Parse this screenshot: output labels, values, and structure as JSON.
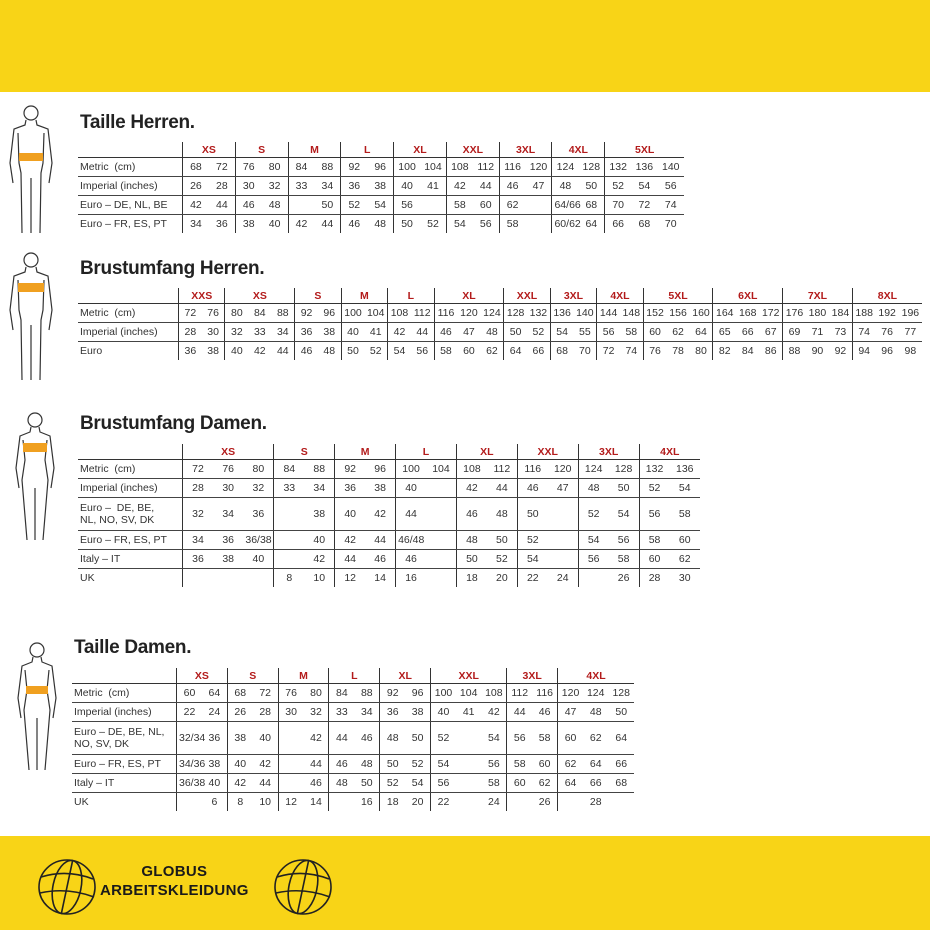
{
  "brand": {
    "line1": "GLOBUS",
    "line2": "ARBEITSKLEIDUNG"
  },
  "colors": {
    "band": "#f8d417",
    "size_header": "#b31b1b",
    "waist_highlight": "#f0a020"
  },
  "tables": [
    {
      "title": "Taille Herren.",
      "figure": "male-waist-figure-icon",
      "sizes": [
        {
          "label": "XS",
          "span": 2
        },
        {
          "label": "S",
          "span": 2
        },
        {
          "label": "M",
          "span": 2
        },
        {
          "label": "L",
          "span": 2
        },
        {
          "label": "XL",
          "span": 2
        },
        {
          "label": "XXL",
          "span": 2
        },
        {
          "label": "3XL",
          "span": 2
        },
        {
          "label": "4XL",
          "span": 2
        },
        {
          "label": "5XL",
          "span": 3
        }
      ],
      "rows": [
        {
          "label": "Metric  (cm)",
          "cells": [
            "68",
            "72",
            "76",
            "80",
            "84",
            "88",
            "92",
            "96",
            "100",
            "104",
            "108",
            "112",
            "116",
            "120",
            "124",
            "128",
            "132",
            "136",
            "140"
          ]
        },
        {
          "label": "Imperial (inches)",
          "cells": [
            "26",
            "28",
            "30",
            "32",
            "33",
            "34",
            "36",
            "38",
            "40",
            "41",
            "42",
            "44",
            "46",
            "47",
            "48",
            "50",
            "52",
            "54",
            "56"
          ]
        },
        {
          "label": "Euro – DE, NL, BE",
          "cells": [
            "42",
            "44",
            "46",
            "48",
            "",
            "50",
            "52",
            "54",
            "56",
            "",
            "58",
            "60",
            "62",
            "",
            "64/66",
            "68",
            "70",
            "72",
            "74"
          ]
        },
        {
          "label": "Euro – FR, ES, PT",
          "cells": [
            "34",
            "36",
            "38",
            "40",
            "42",
            "44",
            "46",
            "48",
            "50",
            "52",
            "54",
            "56",
            "58",
            "",
            "60/62",
            "64",
            "66",
            "68",
            "70"
          ]
        }
      ]
    },
    {
      "title": "Brustumfang Herren.",
      "figure": "male-chest-figure-icon",
      "sizes": [
        {
          "label": "XXS",
          "span": 2
        },
        {
          "label": "XS",
          "span": 3
        },
        {
          "label": "S",
          "span": 2
        },
        {
          "label": "M",
          "span": 2
        },
        {
          "label": "L",
          "span": 2
        },
        {
          "label": "XL",
          "span": 3
        },
        {
          "label": "XXL",
          "span": 2
        },
        {
          "label": "3XL",
          "span": 2
        },
        {
          "label": "4XL",
          "span": 2
        },
        {
          "label": "5XL",
          "span": 3
        },
        {
          "label": "6XL",
          "span": 3
        },
        {
          "label": "7XL",
          "span": 3
        },
        {
          "label": "8XL",
          "span": 3
        }
      ],
      "rows": [
        {
          "label": "Metric  (cm)",
          "cells": [
            "72",
            "76",
            "80",
            "84",
            "88",
            "92",
            "96",
            "100",
            "104",
            "108",
            "112",
            "116",
            "120",
            "124",
            "128",
            "132",
            "136",
            "140",
            "144",
            "148",
            "152",
            "156",
            "160",
            "164",
            "168",
            "172",
            "176",
            "180",
            "184",
            "188",
            "192",
            "196"
          ]
        },
        {
          "label": "Imperial (inches)",
          "cells": [
            "28",
            "30",
            "32",
            "33",
            "34",
            "36",
            "38",
            "40",
            "41",
            "42",
            "44",
            "46",
            "47",
            "48",
            "50",
            "52",
            "54",
            "55",
            "56",
            "58",
            "60",
            "62",
            "64",
            "65",
            "66",
            "67",
            "69",
            "71",
            "73",
            "74",
            "76",
            "77"
          ]
        },
        {
          "label": "Euro",
          "cells": [
            "36",
            "38",
            "40",
            "42",
            "44",
            "46",
            "48",
            "50",
            "52",
            "54",
            "56",
            "58",
            "60",
            "62",
            "64",
            "66",
            "68",
            "70",
            "72",
            "74",
            "76",
            "78",
            "80",
            "82",
            "84",
            "86",
            "88",
            "90",
            "92",
            "94",
            "96",
            "98"
          ]
        }
      ]
    },
    {
      "title": "Brustumfang Damen.",
      "figure": "female-chest-figure-icon",
      "sizes": [
        {
          "label": "XS",
          "span": 3
        },
        {
          "label": "S",
          "span": 2
        },
        {
          "label": "M",
          "span": 2
        },
        {
          "label": "L",
          "span": 2
        },
        {
          "label": "XL",
          "span": 2
        },
        {
          "label": "XXL",
          "span": 2
        },
        {
          "label": "3XL",
          "span": 2
        },
        {
          "label": "4XL",
          "span": 2
        }
      ],
      "rows": [
        {
          "label": "Metric  (cm)",
          "cells": [
            "72",
            "76",
            "80",
            "84",
            "88",
            "92",
            "96",
            "100",
            "104",
            "108",
            "112",
            "116",
            "120",
            "124",
            "128",
            "132",
            "136"
          ]
        },
        {
          "label": "Imperial (inches)",
          "cells": [
            "28",
            "30",
            "32",
            "33",
            "34",
            "36",
            "38",
            "40",
            "",
            "42",
            "44",
            "46",
            "47",
            "48",
            "50",
            "52",
            "54"
          ]
        },
        {
          "label": "Euro –  DE, BE,\nNL, NO, SV, DK",
          "tall": true,
          "cells": [
            "32",
            "34",
            "36",
            "",
            "38",
            "40",
            "42",
            "44",
            "",
            "46",
            "48",
            "50",
            "",
            "52",
            "54",
            "56",
            "58"
          ]
        },
        {
          "label": "Euro – FR, ES, PT",
          "cells": [
            "34",
            "36",
            "36/38",
            "",
            "40",
            "42",
            "44",
            "46/48",
            "",
            "48",
            "50",
            "52",
            "",
            "54",
            "56",
            "58",
            "60"
          ]
        },
        {
          "label": "Italy – IT",
          "cells": [
            "36",
            "38",
            "40",
            "",
            "42",
            "44",
            "46",
            "46",
            "",
            "50",
            "52",
            "54",
            "",
            "56",
            "58",
            "60",
            "62"
          ]
        },
        {
          "label": "UK",
          "cells": [
            "",
            "",
            "",
            "8",
            "10",
            "12",
            "14",
            "16",
            "",
            "18",
            "20",
            "22",
            "24",
            "",
            "26",
            "28",
            "30"
          ]
        }
      ]
    },
    {
      "title": "Taille  Damen.",
      "figure": "female-waist-figure-icon",
      "sizes": [
        {
          "label": "XS",
          "span": 2
        },
        {
          "label": "S",
          "span": 2
        },
        {
          "label": "M",
          "span": 2
        },
        {
          "label": "L",
          "span": 2
        },
        {
          "label": "XL",
          "span": 2
        },
        {
          "label": "XXL",
          "span": 3
        },
        {
          "label": "3XL",
          "span": 2
        },
        {
          "label": "4XL",
          "span": 3
        }
      ],
      "rows": [
        {
          "label": "Metric  (cm)",
          "cells": [
            "60",
            "64",
            "68",
            "72",
            "76",
            "80",
            "84",
            "88",
            "92",
            "96",
            "100",
            "104",
            "108",
            "112",
            "116",
            "120",
            "124",
            "128"
          ]
        },
        {
          "label": "Imperial (inches)",
          "cells": [
            "22",
            "24",
            "26",
            "28",
            "30",
            "32",
            "33",
            "34",
            "36",
            "38",
            "40",
            "41",
            "42",
            "44",
            "46",
            "47",
            "48",
            "50"
          ]
        },
        {
          "label": "Euro – DE, BE, NL,\nNO, SV, DK",
          "tall": true,
          "cells": [
            "32/34",
            "36",
            "38",
            "40",
            "",
            "42",
            "44",
            "46",
            "48",
            "50",
            "52",
            "",
            "54",
            "56",
            "58",
            "60",
            "62",
            "64"
          ]
        },
        {
          "label": "Euro – FR, ES, PT",
          "cells": [
            "34/36",
            "38",
            "40",
            "42",
            "",
            "44",
            "46",
            "48",
            "50",
            "52",
            "54",
            "",
            "56",
            "58",
            "60",
            "62",
            "64",
            "66"
          ]
        },
        {
          "label": "Italy – IT",
          "cells": [
            "36/38",
            "40",
            "42",
            "44",
            "",
            "46",
            "48",
            "50",
            "52",
            "54",
            "56",
            "",
            "58",
            "60",
            "62",
            "64",
            "66",
            "68"
          ]
        },
        {
          "label": "UK",
          "cells": [
            "",
            "6",
            "8",
            "10",
            "12",
            "14",
            "",
            "16",
            "18",
            "20",
            "22",
            "",
            "24",
            "",
            "26",
            "",
            "28",
            ""
          ]
        }
      ]
    }
  ]
}
